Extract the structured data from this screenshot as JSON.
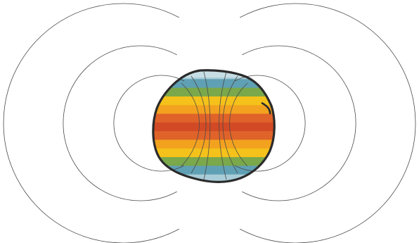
{
  "diagram": {
    "subject": "dipole-field-around-banded-sphere",
    "background_color": "#ffffff",
    "line_color": "#4a4a4a",
    "outline_color": "#2b2b2b",
    "band_colors": [
      "#a9cdd8",
      "#5fa0b4",
      "#7aa84a",
      "#f4c21a",
      "#f2a21e",
      "#e0632a",
      "#d24a25",
      "#e0632a",
      "#f2a21e",
      "#f4c21a",
      "#7aa84a",
      "#5fa0b4",
      "#a9cdd8"
    ],
    "field_loop_count_per_side": 4
  }
}
